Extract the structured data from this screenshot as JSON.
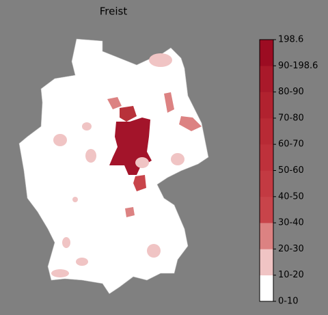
{
  "title": "Freist",
  "colorbar": {
    "labels": [
      "0-10",
      "10-20",
      "20-30",
      "30-40",
      "40-50",
      "50-60",
      "60-70",
      "70-80",
      "80-90",
      "90-198.6",
      "198.6"
    ],
    "colors": [
      "#ffffff",
      "#f0c4c4",
      "#dc8282",
      "#c8444a",
      "#c33a42",
      "#be313b",
      "#b82a35",
      "#b1222f",
      "#a9192a",
      "#9c0c22"
    ]
  }
}
